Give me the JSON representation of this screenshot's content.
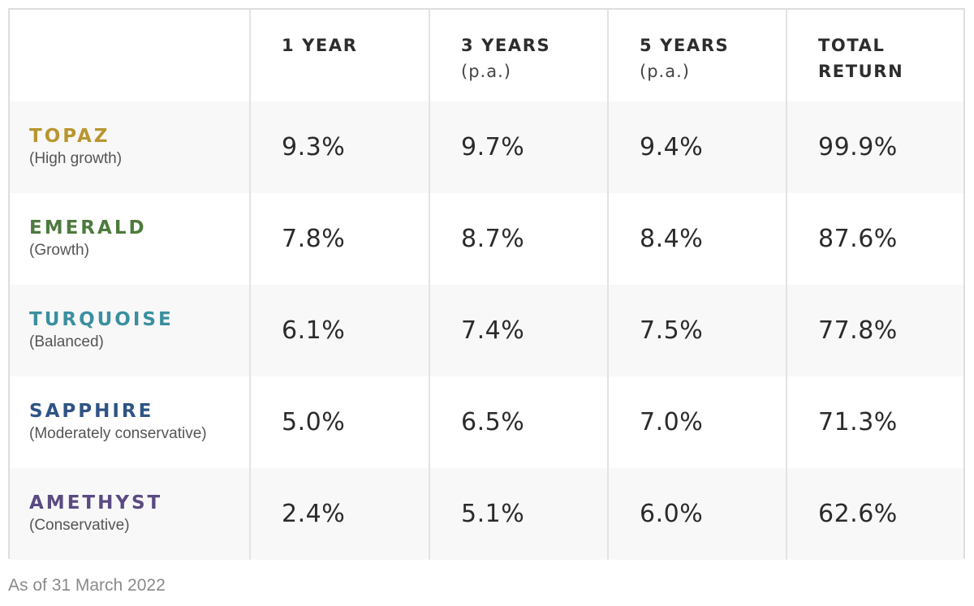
{
  "headers": {
    "corner": "",
    "one_year": "1 YEAR",
    "three_years": "3 YEARS",
    "three_years_sub": "(p.a.)",
    "five_years": "5 YEARS",
    "five_years_sub": "(p.a.)",
    "total_line1": "TOTAL",
    "total_line2": "RETURN"
  },
  "funds": [
    {
      "name": "TOPAZ",
      "description": "(High growth)",
      "color": "#b8962e",
      "one_year": "9.3%",
      "three_years": "9.7%",
      "five_years": "9.4%",
      "total_return": "99.9%"
    },
    {
      "name": "EMERALD",
      "description": "(Growth)",
      "color": "#4e7a3f",
      "one_year": "7.8%",
      "three_years": "8.7%",
      "five_years": "8.4%",
      "total_return": "87.6%"
    },
    {
      "name": "TURQUOISE",
      "description": "(Balanced)",
      "color": "#3a8fa0",
      "one_year": "6.1%",
      "three_years": "7.4%",
      "five_years": "7.5%",
      "total_return": "77.8%"
    },
    {
      "name": "SAPPHIRE",
      "description": "(Moderately conservative)",
      "color": "#2e5485",
      "one_year": "5.0%",
      "three_years": "6.5%",
      "five_years": "7.0%",
      "total_return": "71.3%"
    },
    {
      "name": "AMETHYST",
      "description": "(Conservative)",
      "color": "#5b4a82",
      "one_year": "2.4%",
      "three_years": "5.1%",
      "five_years": "6.0%",
      "total_return": "62.6%"
    }
  ],
  "footnote": "As of 31 March 2022"
}
